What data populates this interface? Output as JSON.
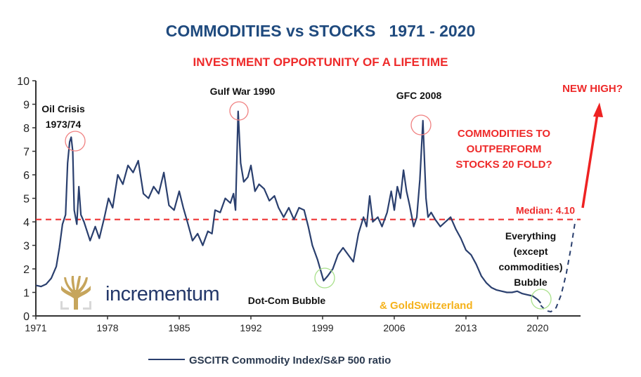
{
  "chart_data": {
    "type": "line",
    "title": "COMMODITIES vs STOCKS   1971 - 2020",
    "subtitle": "INVESTMENT OPPORTUNITY OF A LIFETIME",
    "xlabel": "",
    "ylabel": "",
    "xlim": [
      1971,
      2025.2
    ],
    "ylim": [
      0,
      10
    ],
    "x_ticks": [
      1971,
      1978,
      1985,
      1992,
      1999,
      2006,
      2013,
      2020
    ],
    "x_tick_labels": [
      "1971",
      "1978",
      "1985",
      "1992",
      "1999",
      "2006",
      "2013",
      "2020"
    ],
    "y_ticks": [
      0,
      1,
      2,
      3,
      4,
      5,
      6,
      7,
      8,
      9,
      10
    ],
    "y_tick_labels": [
      "0",
      "1",
      "2",
      "3",
      "4",
      "5",
      "6",
      "7",
      "8",
      "9",
      "10"
    ],
    "grid": false,
    "legend_position": "bottom",
    "series": [
      {
        "name": "GSCITR Commodity Index/S&P 500 ratio",
        "color": "#2a3f6e",
        "x": [
          1971.0,
          1971.5,
          1972.0,
          1972.5,
          1973.0,
          1973.3,
          1973.6,
          1973.9,
          1974.1,
          1974.3,
          1974.45,
          1974.6,
          1974.75,
          1975.0,
          1975.2,
          1975.4,
          1975.7,
          1976.3,
          1976.8,
          1977.2,
          1977.7,
          1978.1,
          1978.5,
          1979.0,
          1979.5,
          1980.0,
          1980.5,
          1981.0,
          1981.5,
          1982.0,
          1982.5,
          1983.0,
          1983.5,
          1984.0,
          1984.5,
          1985.0,
          1985.4,
          1985.8,
          1986.3,
          1986.8,
          1987.3,
          1987.8,
          1988.2,
          1988.5,
          1989.0,
          1989.5,
          1990.0,
          1990.3,
          1990.5,
          1990.75,
          1991.0,
          1991.3,
          1991.7,
          1992.0,
          1992.4,
          1992.8,
          1993.3,
          1993.8,
          1994.3,
          1994.7,
          1995.2,
          1995.7,
          1996.2,
          1996.7,
          1997.2,
          1997.6,
          1998.0,
          1998.5,
          1998.9,
          1999.1,
          1999.5,
          2000.0,
          2000.5,
          2001.0,
          2001.5,
          2002.0,
          2002.5,
          2003.0,
          2003.3,
          2003.6,
          2003.9,
          2004.4,
          2004.8,
          2005.3,
          2005.7,
          2006.0,
          2006.3,
          2006.6,
          2006.9,
          2007.2,
          2007.5,
          2007.9,
          2008.2,
          2008.5,
          2008.8,
          2009.1,
          2009.3,
          2009.6,
          2010.0,
          2010.5,
          2011.0,
          2011.5,
          2012.0,
          2012.5,
          2013.0,
          2013.5,
          2014.0,
          2014.5,
          2015.0,
          2015.5,
          2016.0,
          2016.5,
          2017.0,
          2017.5,
          2018.0,
          2018.5,
          2019.0,
          2019.5,
          2020.0,
          2020.3
        ],
        "y": [
          1.3,
          1.25,
          1.35,
          1.6,
          2.1,
          2.9,
          3.9,
          4.3,
          6.5,
          7.4,
          7.6,
          7.0,
          4.5,
          3.9,
          5.5,
          4.3,
          4.0,
          3.2,
          3.8,
          3.3,
          4.2,
          5.0,
          4.6,
          6.0,
          5.6,
          6.4,
          6.1,
          6.6,
          5.2,
          5.0,
          5.5,
          5.2,
          6.1,
          4.7,
          4.5,
          5.3,
          4.6,
          4.0,
          3.2,
          3.5,
          3.0,
          3.6,
          3.5,
          4.5,
          4.4,
          5.0,
          4.8,
          5.2,
          4.5,
          8.7,
          6.5,
          5.7,
          5.9,
          6.4,
          5.3,
          5.6,
          5.4,
          4.9,
          5.1,
          4.6,
          4.2,
          4.6,
          4.1,
          4.6,
          4.5,
          3.8,
          3.0,
          2.4,
          1.8,
          1.5,
          1.7,
          2.0,
          2.6,
          2.9,
          2.6,
          2.3,
          3.5,
          4.2,
          3.8,
          5.1,
          4.0,
          4.2,
          3.8,
          4.4,
          5.3,
          4.5,
          5.5,
          5.0,
          6.2,
          5.3,
          4.7,
          3.8,
          4.2,
          5.8,
          8.3,
          5.0,
          4.2,
          4.4,
          4.1,
          3.8,
          4.0,
          4.2,
          3.7,
          3.3,
          2.8,
          2.6,
          2.2,
          1.7,
          1.4,
          1.2,
          1.1,
          1.05,
          1.0,
          1.0,
          1.05,
          0.95,
          0.9,
          0.85,
          0.7,
          0.55
        ]
      },
      {
        "name": "projection",
        "style": "dashed",
        "color": "#2a3f6e",
        "x": [
          2020.3,
          2020.8,
          2021.3,
          2021.8,
          2022.3,
          2022.8,
          2023.3,
          2023.7
        ],
        "y": [
          0.45,
          0.22,
          0.18,
          0.35,
          0.9,
          1.8,
          3.0,
          4.1
        ]
      }
    ],
    "reference_lines": [
      {
        "y": 4.1,
        "label": "Median: 4.10",
        "color": "#ee2a2a",
        "style": "dashed"
      }
    ],
    "annotations": [
      {
        "text": [
          "Oil Crisis",
          "1973/74"
        ],
        "x": 1974.4,
        "y": 7.4,
        "marker": "circle",
        "marker_color": "#f08080"
      },
      {
        "text": [
          "Gulf War 1990"
        ],
        "x": 1990.75,
        "y": 8.7,
        "marker": "circle",
        "marker_color": "#f08080"
      },
      {
        "text": [
          "GFC 2008"
        ],
        "x": 2008.8,
        "y": 8.3,
        "marker": "circle",
        "marker_color": "#f08080"
      },
      {
        "text": [
          "Dot-Com Bubble"
        ],
        "x": 1999.1,
        "y": 1.6,
        "marker": "circle",
        "marker_color": "#a8e08a"
      },
      {
        "text": [
          "Everything",
          "(except",
          "commodities)",
          "Bubble"
        ],
        "x": 2020.0,
        "y": 0.75,
        "marker": "circle",
        "marker_color": "#a8e08a"
      }
    ],
    "callouts": {
      "outperform": [
        "COMMODITIES TO",
        "OUTPERFORM",
        "STOCKS 20 FOLD?"
      ],
      "new_high": "NEW HIGH?",
      "arrow_color": "#ee2222"
    },
    "colors": {
      "title": "#1f4a7e",
      "subtitle": "#ee2a2a",
      "axis": "#333333",
      "line": "#2a3f6e",
      "logo_gold": "#c6a55c",
      "logo_text": "#24386a",
      "goldswitzerland": "#f5b21b"
    }
  },
  "branding": {
    "incrementum": "incrementum",
    "goldswitzerland": "& GoldSwitzerland"
  }
}
